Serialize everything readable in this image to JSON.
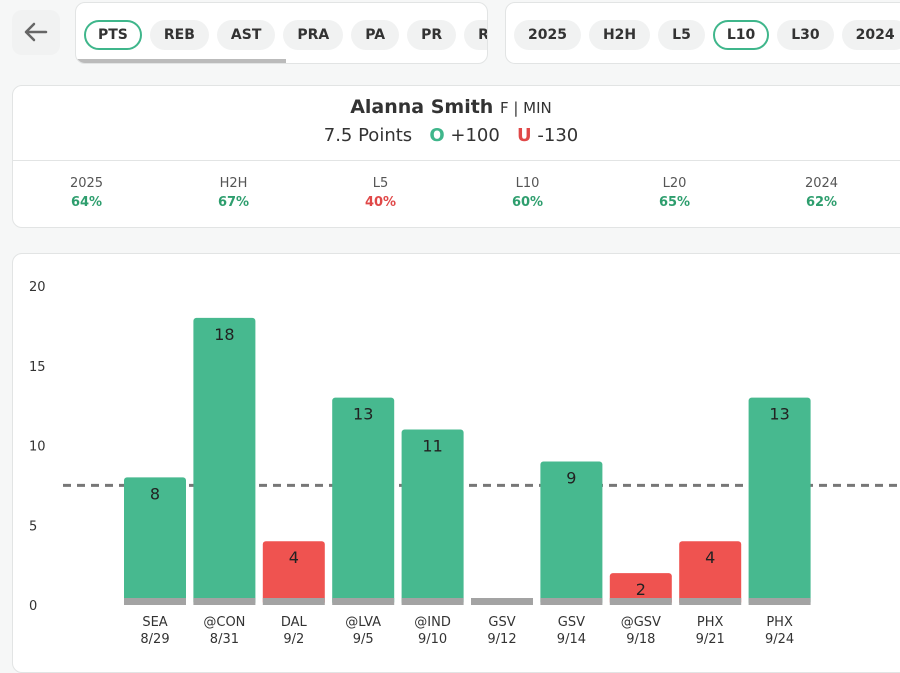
{
  "stat_tabs": [
    "PTS",
    "REB",
    "AST",
    "PRA",
    "PA",
    "PR",
    "RA"
  ],
  "range_tabs": [
    "2025",
    "H2H",
    "L5",
    "L10",
    "L30",
    "2024"
  ],
  "player": {
    "name": "Alanna Smith",
    "position": "F | MIN",
    "line": "7.5 Points",
    "over": "O",
    "over_odds": "+100",
    "under": "U",
    "under_odds": "-130"
  },
  "hit_rates": [
    {
      "label": "2025",
      "value": "64%",
      "color": "#2e9e6e"
    },
    {
      "label": "H2H",
      "value": "67%",
      "color": "#2e9e6e"
    },
    {
      "label": "L5",
      "value": "40%",
      "color": "#e04848"
    },
    {
      "label": "L10",
      "value": "60%",
      "color": "#2e9e6e"
    },
    {
      "label": "L20",
      "value": "65%",
      "color": "#2e9e6e"
    },
    {
      "label": "2024",
      "value": "62%",
      "color": "#2e9e6e"
    }
  ],
  "chart_data": {
    "type": "bar",
    "categories": [
      "SEA",
      "@CON",
      "DAL",
      "@LVA",
      "@IND",
      "GSV",
      "GSV",
      "@GSV",
      "PHX",
      "PHX"
    ],
    "dates": [
      "8/29",
      "8/31",
      "9/2",
      "9/5",
      "9/10",
      "9/12",
      "9/14",
      "9/18",
      "9/21",
      "9/24"
    ],
    "values": [
      8,
      18,
      4,
      13,
      11,
      0,
      9,
      2,
      4,
      13
    ],
    "value_labels": [
      "8",
      "18",
      "4",
      "13",
      "11",
      null,
      "9",
      "2",
      "4",
      "13"
    ],
    "threshold": 7.5,
    "over_color": "#47b98f",
    "under_color": "#ef5350",
    "ylim": [
      0,
      20
    ],
    "yticks": [
      0,
      5,
      10,
      15,
      20
    ]
  }
}
